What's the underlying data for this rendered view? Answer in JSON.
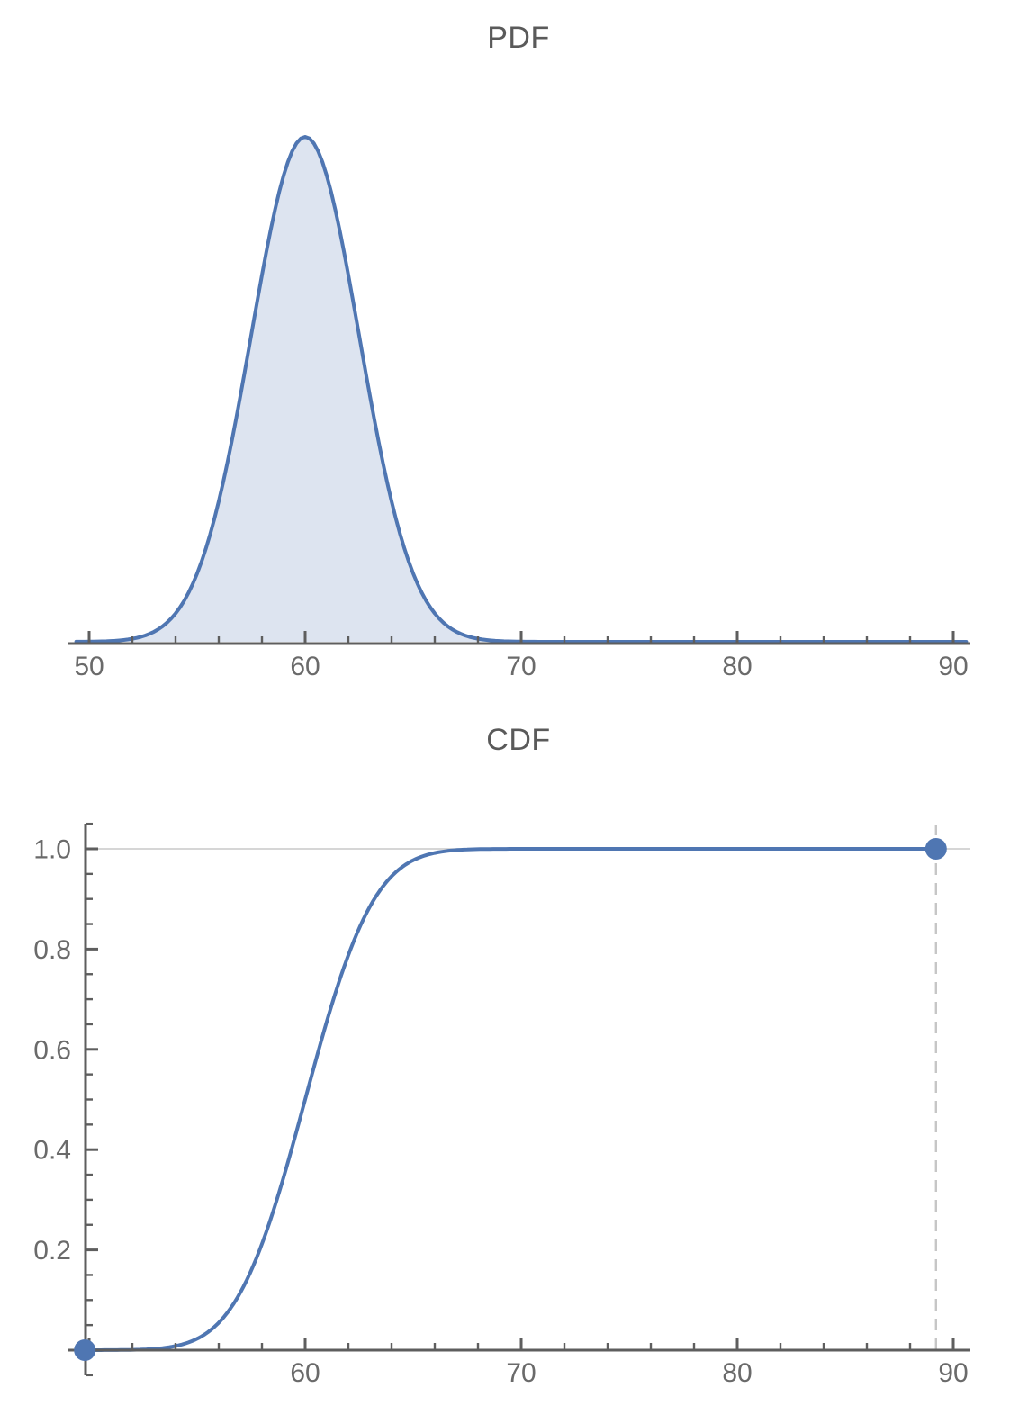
{
  "charts": [
    {
      "id": "pdf",
      "title": "PDF",
      "chart_data": {
        "type": "area",
        "title": "PDF",
        "distribution": {
          "family": "normal",
          "mean": 60,
          "sd": 2.5
        },
        "x": [
          50,
          51,
          52,
          53,
          54,
          55,
          56,
          57,
          58,
          59,
          60,
          61,
          62,
          63,
          64,
          65,
          66,
          67,
          68,
          69,
          70,
          71,
          72,
          73,
          74,
          75,
          76,
          77,
          78,
          79,
          80,
          81,
          82,
          83,
          84,
          85,
          86,
          87,
          88,
          89,
          90
        ],
        "y": [
          5e-05,
          0.00024,
          0.00095,
          0.0032,
          0.009,
          0.0216,
          0.0444,
          0.0777,
          0.1159,
          0.1473,
          0.1596,
          0.1473,
          0.1159,
          0.0777,
          0.0444,
          0.0216,
          0.009,
          0.0032,
          0.00095,
          0.00024,
          5e-05,
          1e-05,
          0,
          0,
          0,
          0,
          0,
          0,
          0,
          0,
          0,
          0,
          0,
          0,
          0,
          0,
          0,
          0,
          0,
          0,
          0
        ],
        "peak": {
          "x": 60,
          "density": 0.1596
        },
        "xlim": [
          49.0,
          90.8
        ],
        "ylim": [
          0,
          0.165
        ],
        "grid": "off",
        "legend": "none"
      },
      "x_axis": {
        "major_ticks": [
          50,
          60,
          70,
          80,
          90
        ],
        "tick_labels": [
          "50",
          "60",
          "70",
          "80",
          "90"
        ],
        "minor_ticks": [
          52,
          54,
          56,
          58,
          62,
          64,
          66,
          68,
          72,
          74,
          76,
          78,
          82,
          84,
          86,
          88
        ]
      },
      "y_axis_shown": false,
      "colors": {
        "curve": "#4f76b2",
        "fill": "#dde4f0",
        "axis": "#5e5e5e",
        "tick_label": "#6a6a6a",
        "title": "#5a5a5a"
      }
    },
    {
      "id": "cdf",
      "title": "CDF",
      "chart_data": {
        "type": "line",
        "title": "CDF",
        "distribution": {
          "family": "normal",
          "mean": 60,
          "sd": 2.5
        },
        "x": [
          50,
          51,
          52,
          53,
          54,
          55,
          56,
          57,
          58,
          59,
          60,
          61,
          62,
          63,
          64,
          65,
          66,
          67,
          68,
          69,
          70,
          71,
          72,
          73,
          74,
          75,
          76,
          77,
          78,
          79,
          80,
          81,
          82,
          83,
          84,
          85,
          86,
          87,
          88,
          89,
          90
        ],
        "y": [
          3e-05,
          0.00016,
          0.00069,
          0.0026,
          0.0082,
          0.0228,
          0.0548,
          0.1151,
          0.2119,
          0.3446,
          0.5,
          0.6554,
          0.7881,
          0.8849,
          0.9452,
          0.9772,
          0.9918,
          0.9977,
          0.9993,
          0.9998,
          0.99997,
          1,
          1,
          1,
          1,
          1,
          1,
          1,
          1,
          1,
          1,
          1,
          1,
          1,
          1,
          1,
          1,
          1,
          1,
          1,
          1
        ],
        "markers": [
          {
            "x": 49.8,
            "y": 0
          },
          {
            "x": 89.2,
            "y": 1
          }
        ],
        "dashed_line_x": 89.2,
        "gridline_y": 1.0,
        "xlim": [
          49.0,
          90.8
        ],
        "ylim": [
          -0.05,
          1.05
        ],
        "grid": "off",
        "legend": "none"
      },
      "x_axis": {
        "major_ticks": [
          50,
          60,
          70,
          80,
          90
        ],
        "tick_labels": [
          "",
          "60",
          "70",
          "80",
          "90"
        ],
        "minor_ticks": [
          52,
          54,
          56,
          58,
          62,
          64,
          66,
          68,
          72,
          74,
          76,
          78,
          82,
          84,
          86,
          88
        ]
      },
      "y_axis": {
        "major_ticks": [
          0.2,
          0.4,
          0.6,
          0.8,
          1.0
        ],
        "tick_labels": [
          "0.2",
          "0.4",
          "0.6",
          "0.8",
          "1.0"
        ],
        "minor_ticks": [
          -0.05,
          0.05,
          0.1,
          0.15,
          0.25,
          0.3,
          0.35,
          0.45,
          0.5,
          0.55,
          0.65,
          0.7,
          0.75,
          0.85,
          0.9,
          0.95,
          1.05
        ]
      },
      "colors": {
        "curve": "#4f76b2",
        "marker": "#4f76b2",
        "axis": "#5e5e5e",
        "tick_label": "#6a6a6a",
        "title": "#5a5a5a",
        "gridline": "#c9c9c9",
        "dashed_line": "#c6c6c6"
      }
    }
  ]
}
